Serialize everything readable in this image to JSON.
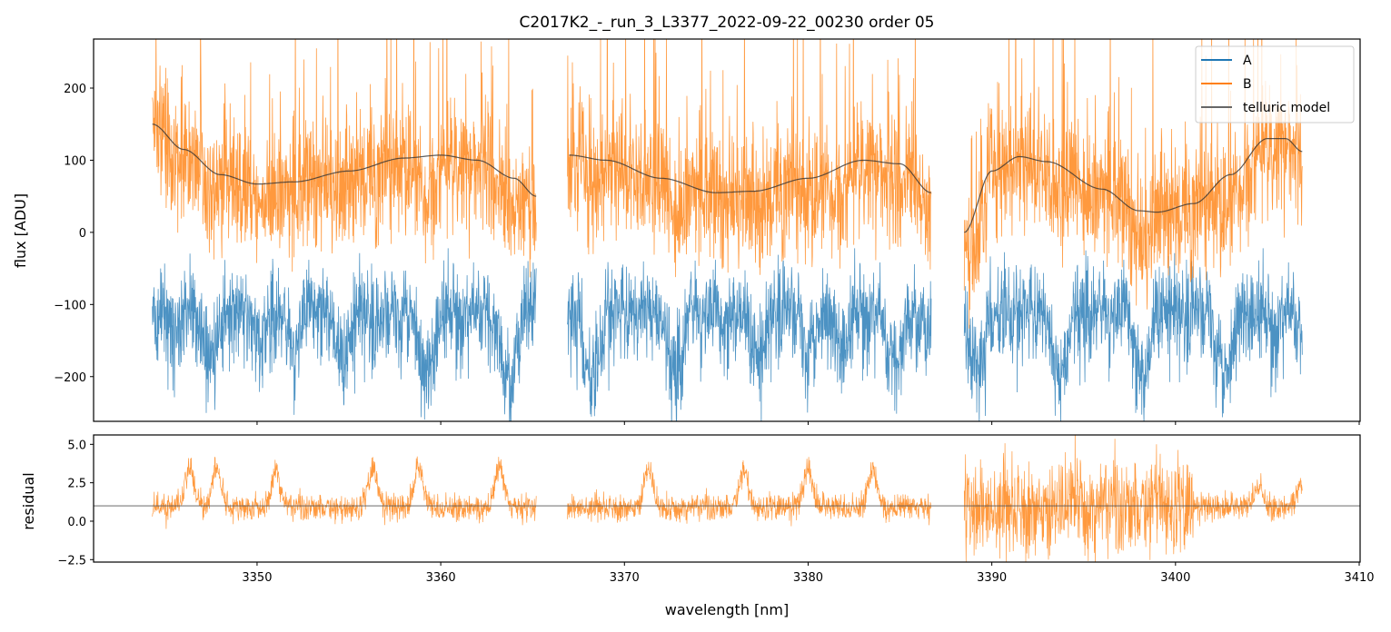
{
  "chart_data": [
    {
      "type": "line",
      "panel": "top",
      "title": "C2017K2_-_run_3_L3377_2022-09-22_00230  order 05",
      "xlabel": "",
      "ylabel": "flux [ADU]",
      "xlim": [
        3341.1,
        3410.05
      ],
      "ylim": [
        -262,
        268
      ],
      "yticks": [
        -200,
        -100,
        0,
        100,
        200
      ],
      "yticklabels": [
        "−200",
        "−100",
        "0",
        "100",
        "200"
      ],
      "legend": {
        "placement": "top-right",
        "entries": [
          "A",
          "B",
          "telluric model"
        ]
      },
      "segments": [
        [
          3344.3,
          3365.2
        ],
        [
          3366.9,
          3386.7
        ],
        [
          3388.5,
          3406.9
        ]
      ],
      "series": [
        {
          "name": "A",
          "color": "#1f77b4",
          "description": "noisy spectrum, baseline approx -100 ADU, deep absorption to below -260"
        },
        {
          "name": "B",
          "color": "#ff7f0e",
          "description": "noisy spectrum following telluric model, spikes above 268"
        },
        {
          "name": "telluric model",
          "color": "#555555",
          "points": [
            [
              [
                3344.3,
                150
              ],
              [
                3346,
                115
              ],
              [
                3348,
                80
              ],
              [
                3350,
                67
              ],
              [
                3352,
                70
              ],
              [
                3355,
                85
              ],
              [
                3358,
                103
              ],
              [
                3360,
                107
              ],
              [
                3362,
                100
              ],
              [
                3364,
                75
              ],
              [
                3365.2,
                50
              ]
            ],
            [
              [
                3367,
                107
              ],
              [
                3369,
                100
              ],
              [
                3372,
                75
              ],
              [
                3375,
                55
              ],
              [
                3377,
                57
              ],
              [
                3380,
                75
              ],
              [
                3383,
                100
              ],
              [
                3385,
                95
              ],
              [
                3386.7,
                55
              ]
            ],
            [
              [
                3388.5,
                0
              ],
              [
                3390,
                85
              ],
              [
                3391.5,
                105
              ],
              [
                3393,
                98
              ],
              [
                3396,
                60
              ],
              [
                3398,
                30
              ],
              [
                3399,
                28
              ],
              [
                3401,
                40
              ],
              [
                3403,
                80
              ],
              [
                3405,
                130
              ],
              [
                3406,
                130
              ],
              [
                3406.9,
                112
              ]
            ]
          ]
        }
      ]
    },
    {
      "type": "line",
      "panel": "bottom",
      "xlabel": "wavelength [nm]",
      "ylabel": "residual",
      "xlim": [
        3341.1,
        3410.05
      ],
      "ylim": [
        -2.66,
        5.61
      ],
      "xticks": [
        3350,
        3360,
        3370,
        3380,
        3390,
        3400,
        3410
      ],
      "xticklabels": [
        "3350",
        "3360",
        "3370",
        "3380",
        "3390",
        "3400",
        "3410"
      ],
      "yticks": [
        -2.5,
        0.0,
        2.5,
        5.0
      ],
      "yticklabels": [
        "−2.5",
        "0.0",
        "2.5",
        "5.0"
      ],
      "reference_line": 1.0,
      "series": [
        {
          "name": "B residual",
          "color": "#ff7f0e",
          "description": "residual around 1.0 with peaks near 3351, 3376.5; high scatter 3388-3400"
        }
      ]
    }
  ]
}
